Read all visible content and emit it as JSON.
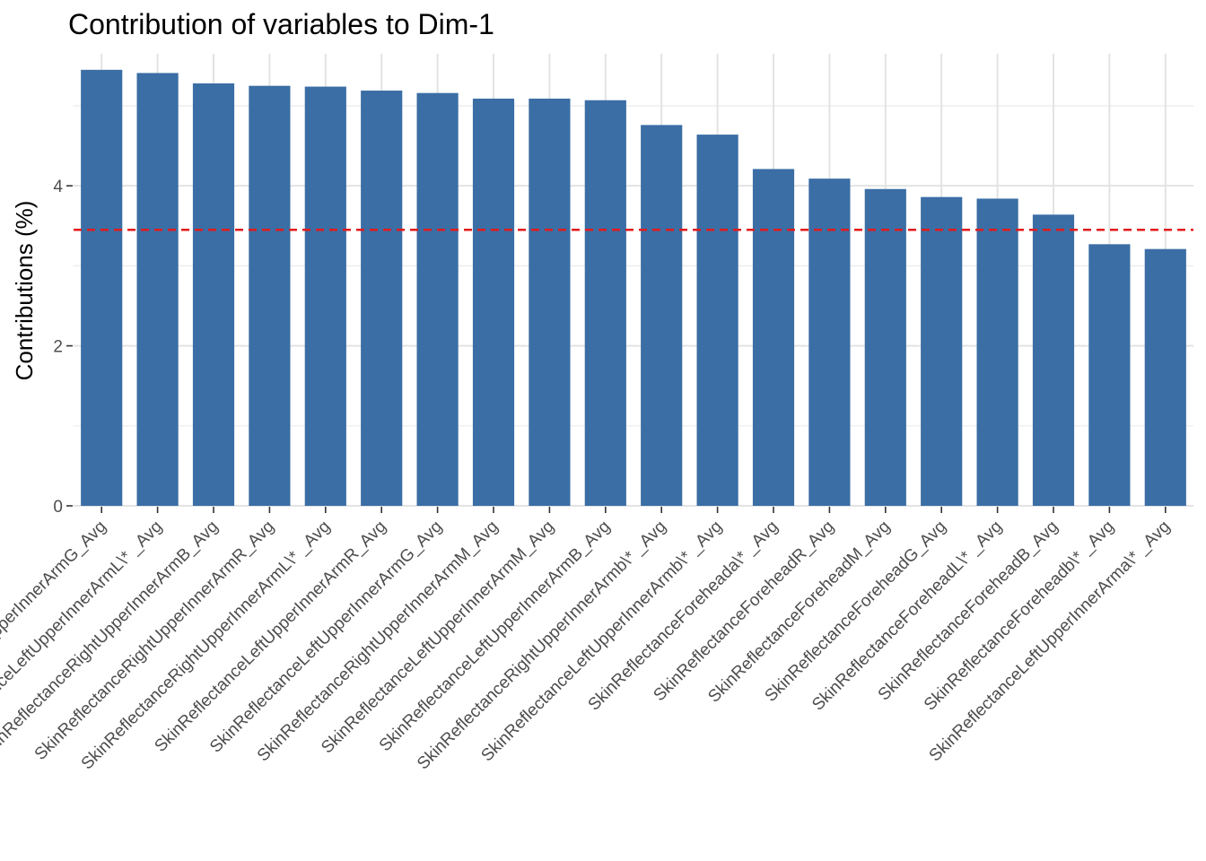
{
  "chart_data": {
    "type": "bar",
    "title": "Contribution of variables to Dim-1",
    "xlabel": "",
    "ylabel": "Contributions (%)",
    "ylim": [
      0,
      5.65
    ],
    "yticks": [
      0,
      2,
      4
    ],
    "grid": true,
    "reference_line": {
      "value": 3.45,
      "style": "dashed",
      "color": "#e41a1c"
    },
    "bar_color": "#3a6ea5",
    "categories": [
      "SkinReflectanceRightUpperInnerArmG_Avg",
      "SkinReflectanceLeftUpperInnerArmL\\* _Avg",
      "SkinReflectanceRightUpperInnerArmB_Avg",
      "SkinReflectanceRightUpperInnerArmR_Avg",
      "SkinReflectanceRightUpperInnerArmL\\* _Avg",
      "SkinReflectanceLeftUpperInnerArmR_Avg",
      "SkinReflectanceLeftUpperInnerArmG_Avg",
      "SkinReflectanceRightUpperInnerArmM_Avg",
      "SkinReflectanceLeftUpperInnerArmM_Avg",
      "SkinReflectanceLeftUpperInnerArmB_Avg",
      "SkinReflectanceRightUpperInnerArmb\\* _Avg",
      "SkinReflectanceLeftUpperInnerArmb\\* _Avg",
      "SkinReflectanceForeheada\\* _Avg",
      "SkinReflectanceForeheadR_Avg",
      "SkinReflectanceForeheadM_Avg",
      "SkinReflectanceForeheadG_Avg",
      "SkinReflectanceForeheadL\\* _Avg",
      "SkinReflectanceForeheadB_Avg",
      "SkinReflectanceForeheadb\\* _Avg",
      "SkinReflectanceLeftUpperInnerArma\\* _Avg"
    ],
    "values": [
      5.45,
      5.41,
      5.28,
      5.25,
      5.24,
      5.19,
      5.16,
      5.09,
      5.09,
      5.07,
      4.76,
      4.64,
      4.21,
      4.09,
      3.96,
      3.86,
      3.84,
      3.64,
      3.27,
      3.21
    ]
  }
}
